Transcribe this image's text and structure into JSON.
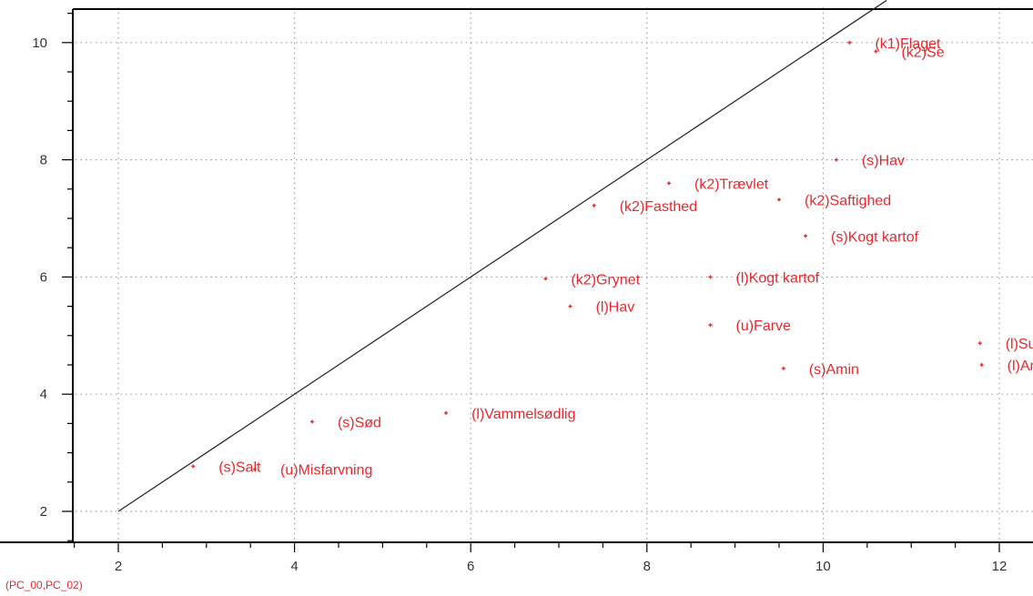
{
  "footer_label": "(PC_00,PC_02)",
  "colors": {
    "points": "#e8282d",
    "grid": "#9aa0a0",
    "axis": "#000000",
    "reference_line": "#2a2a2a",
    "background": "#ffffff"
  },
  "chart_data": {
    "type": "scatter",
    "title": "",
    "xlabel": "",
    "ylabel": "",
    "xlim": [
      1.4,
      12.4
    ],
    "ylim": [
      1.5,
      10.6
    ],
    "grid": true,
    "grid_style": "dotted",
    "x_ticks": [
      2,
      4,
      6,
      8,
      10,
      12
    ],
    "y_ticks": [
      2,
      4,
      6,
      8,
      10
    ],
    "reference_line": "y = x",
    "points": [
      {
        "label": "(k1)Flaget",
        "x": 10.3,
        "y": 10.0
      },
      {
        "label": "(k2)Se",
        "x": 10.6,
        "y": 9.85
      },
      {
        "label": "(s)Hav",
        "x": 10.15,
        "y": 8.0
      },
      {
        "label": "(k2)Trævlet",
        "x": 8.25,
        "y": 7.6
      },
      {
        "label": "(k2)Saftighed",
        "x": 9.5,
        "y": 7.32
      },
      {
        "label": "(k2)Fasthed",
        "x": 7.4,
        "y": 7.22
      },
      {
        "label": "(s)Kogt kartof",
        "x": 9.8,
        "y": 6.7
      },
      {
        "label": "(k2)Grynet",
        "x": 6.85,
        "y": 5.97
      },
      {
        "label": "(l)Kogt kartof",
        "x": 8.72,
        "y": 6.0
      },
      {
        "label": "(l)Hav",
        "x": 7.13,
        "y": 5.5
      },
      {
        "label": "(u)Farve",
        "x": 8.72,
        "y": 5.18
      },
      {
        "label": "(l)Sur",
        "x": 11.78,
        "y": 4.87
      },
      {
        "label": "(l)Amin",
        "x": 11.8,
        "y": 4.5
      },
      {
        "label": "(s)Amin",
        "x": 9.55,
        "y": 4.44
      },
      {
        "label": "(l)Vammelsødlig",
        "x": 5.72,
        "y": 3.68
      },
      {
        "label": "(s)Sød",
        "x": 4.2,
        "y": 3.53
      },
      {
        "label": "(s)Salt",
        "x": 2.85,
        "y": 2.77
      },
      {
        "label": "(u)Misfarvning",
        "x": 3.55,
        "y": 2.72
      }
    ]
  }
}
